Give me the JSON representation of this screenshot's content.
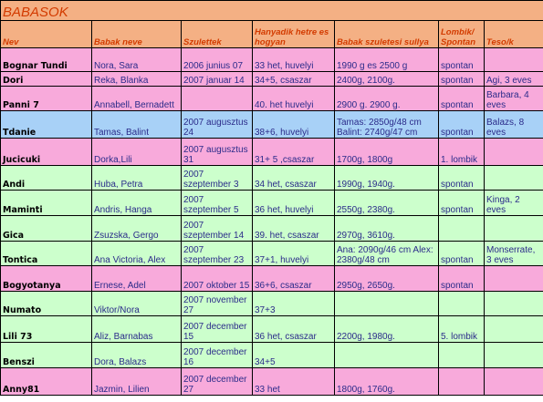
{
  "title": "BABASOK",
  "headers": [
    "Nev",
    "Babak neve",
    "Szulettek",
    "Hanyadik hetre es hogyan",
    "Babak szuletesi sullya",
    "Lombik/ Spontan",
    "Teso/k"
  ],
  "rows": [
    {
      "color": "pink",
      "cells": [
        "Bognar Tundi",
        "Nora, Sara",
        "2006 junius 07",
        "33 het, huvelyi",
        "1990 g es 2500 g",
        "spontan",
        ""
      ]
    },
    {
      "color": "pink",
      "cells": [
        "Dori",
        "Reka, Blanka",
        "2007 januar 14",
        "34+5, csaszar",
        "2400g, 2100g.",
        "spontan",
        "Agi, 3 eves"
      ]
    },
    {
      "color": "pink",
      "cells": [
        "Panni 7",
        "Annabell, Bernadett",
        "",
        "40. het huvelyi",
        "2900 g. 2900 g.",
        "spontan",
        "Barbara, 4 eves"
      ]
    },
    {
      "color": "blue",
      "cells": [
        "Tdanie",
        "Tamas, Balint",
        "2007 augusztus 24",
        "38+6, huvelyi",
        "Tamas: 2850g/48 cm Balint: 2740g/47 cm",
        "spontan",
        "Balazs, 8 eves"
      ]
    },
    {
      "color": "pink",
      "cells": [
        "Jucicuki",
        "Dorka,Lili",
        "2007 augusztus 31",
        "31+ 5 ,csaszar",
        "1700g, 1800g",
        "1. lombik",
        ""
      ]
    },
    {
      "color": "green",
      "cells": [
        "Andi",
        "Huba, Petra",
        "2007 szeptember 3",
        "34 het, csaszar",
        "1990g, 1940g.",
        "spontan",
        ""
      ]
    },
    {
      "color": "green",
      "cells": [
        "Maminti",
        "Andris, Hanga",
        "2007 szeptember 5",
        "36 het, huvelyi",
        "2550g, 2380g.",
        "spontan",
        "Kinga, 2 eves"
      ]
    },
    {
      "color": "green",
      "cells": [
        "Gica",
        "Zsuzska, Gergo",
        "2007 szeptember 14",
        "39. het, csaszar",
        "2970g, 3610g.",
        "",
        ""
      ]
    },
    {
      "color": "green",
      "cells": [
        "Tontica",
        "Ana Victoria, Alex",
        "2007 szeptember 23",
        "37+1, huvelyi",
        "Ana: 2090g/46 cm Alex: 2380g/48 cm",
        "spontan",
        "Monserrate, 3 eves"
      ]
    },
    {
      "color": "pink",
      "cells": [
        "Bogyotanya",
        "Ernese, Adel",
        "2007 oktober 15",
        "36+6, csaszar",
        "2950g, 2650g.",
        "spontan",
        ""
      ]
    },
    {
      "color": "green",
      "cells": [
        "Numato",
        "Viktor/Nora",
        "2007 november 27",
        "37+3",
        "",
        "",
        ""
      ]
    },
    {
      "color": "green",
      "cells": [
        "Lili 73",
        "Aliz, Barnabas",
        "2007 december 15",
        "36 het, csaszar",
        "2200g, 1980g.",
        "5. lombik",
        ""
      ]
    },
    {
      "color": "green",
      "cells": [
        "Benszi",
        "Dora, Balazs",
        "2007 december 16",
        "34+5",
        "",
        "",
        ""
      ]
    },
    {
      "color": "pink",
      "cells": [
        "Anny81",
        "Jazmin, Lilien",
        "2007 december 27",
        "33 het",
        "1800g, 1760g.",
        "",
        ""
      ]
    }
  ]
}
